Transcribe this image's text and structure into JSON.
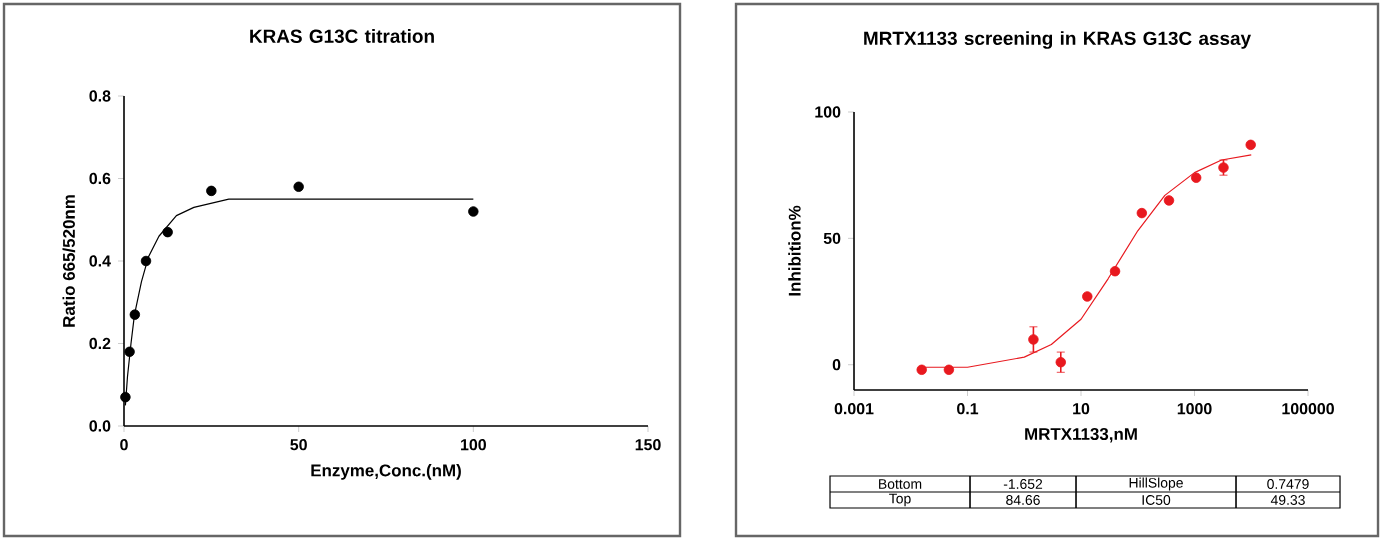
{
  "chart_data": [
    {
      "type": "scatter",
      "title": "KRAS G13C titration",
      "xlabel": "Enzyme,Conc.(nM)",
      "ylabel": "Ratio 665/520nm",
      "xlim": [
        0,
        150
      ],
      "ylim": [
        0,
        0.8
      ],
      "xticks": [
        0,
        50,
        100,
        150
      ],
      "yticks": [
        {
          "value": 0,
          "label": "0.0"
        },
        {
          "value": 0.2,
          "label": "0.2"
        },
        {
          "value": 0.4,
          "label": "0.4"
        },
        {
          "value": 0.6,
          "label": "0.6"
        },
        {
          "value": 0.8,
          "label": "0.8"
        }
      ],
      "series": [
        {
          "type": "scatter",
          "marker": "circle",
          "color": "#000000",
          "x": [
            0.4,
            1.6,
            3.1,
            6.3,
            12.5,
            25,
            50,
            100
          ],
          "values": [
            0.07,
            0.18,
            0.27,
            0.4,
            0.47,
            0.57,
            0.58,
            0.52
          ]
        },
        {
          "type": "line",
          "marker": "none",
          "line_style": "solid",
          "color": "#000000",
          "x": [
            0.4,
            1,
            2,
            3,
            5,
            7,
            10,
            15,
            20,
            25,
            30,
            50,
            100
          ],
          "values": [
            0.05,
            0.12,
            0.2,
            0.27,
            0.35,
            0.41,
            0.46,
            0.51,
            0.53,
            0.54,
            0.55,
            0.55,
            0.55
          ]
        }
      ]
    },
    {
      "type": "scatter",
      "title": "MRTX1133 screening in KRAS G13C assay",
      "xlabel": "MRTX1133,nM",
      "ylabel": "Inhibition%",
      "log": "x",
      "xlim": [
        0.001,
        100000
      ],
      "ylim": [
        -10,
        100
      ],
      "xticks": [
        0.001,
        0.1,
        10,
        1000,
        100000
      ],
      "yticks": [
        0,
        50,
        100
      ],
      "annotations": [
        "Bottom",
        "-1.652",
        "HillSlope",
        "0.7479",
        "Top",
        "84.66",
        "IC50",
        "49.33"
      ],
      "series": [
        {
          "type": "scatter",
          "marker": "circle",
          "color": "#e8191f",
          "x": [
            0.0156,
            0.047,
            1.45,
            4.4,
            12.9,
            39.8,
            118,
            355,
            1070,
            3240,
            9780
          ],
          "values": [
            -2,
            -2,
            10,
            1,
            27,
            37,
            60,
            65,
            74,
            78,
            87
          ],
          "errors": [
            null,
            null,
            5,
            4,
            null,
            null,
            null,
            null,
            null,
            3,
            null
          ]
        },
        {
          "type": "line",
          "marker": "none",
          "line_style": "solid",
          "color": "#e8191f",
          "x": [
            0.0156,
            0.1,
            1,
            3,
            10,
            30,
            100,
            300,
            1000,
            3000,
            10000
          ],
          "values": [
            -1,
            -1,
            3,
            8,
            18,
            34,
            53,
            67,
            76,
            81,
            83
          ]
        }
      ]
    }
  ]
}
